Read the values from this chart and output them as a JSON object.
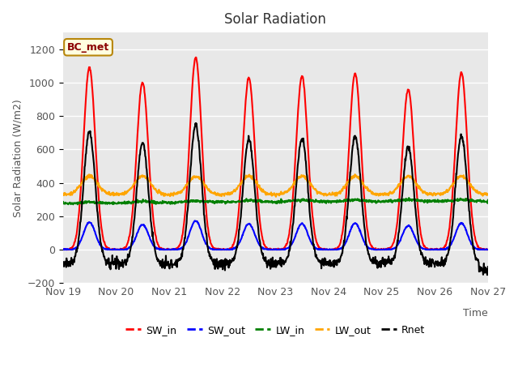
{
  "title": "Solar Radiation",
  "ylabel": "Solar Radiation (W/m2)",
  "xlabel": "Time",
  "ylim": [
    -200,
    1300
  ],
  "yticks": [
    -200,
    0,
    200,
    400,
    600,
    800,
    1000,
    1200
  ],
  "plot_bg_color": "#e8e8e8",
  "grid_color": "white",
  "series": {
    "SW_in": {
      "color": "red",
      "lw": 1.5
    },
    "SW_out": {
      "color": "blue",
      "lw": 1.5
    },
    "LW_in": {
      "color": "green",
      "lw": 1.5
    },
    "LW_out": {
      "color": "orange",
      "lw": 1.5
    },
    "Rnet": {
      "color": "black",
      "lw": 1.5
    }
  },
  "xtick_labels": [
    "Nov 19",
    "Nov 20",
    "Nov 21",
    "Nov 22",
    "Nov 23",
    "Nov 24",
    "Nov 25",
    "Nov 26",
    "Nov 27"
  ],
  "annotation_text": "BC_met",
  "n_days": 8,
  "pts_per_day": 144
}
